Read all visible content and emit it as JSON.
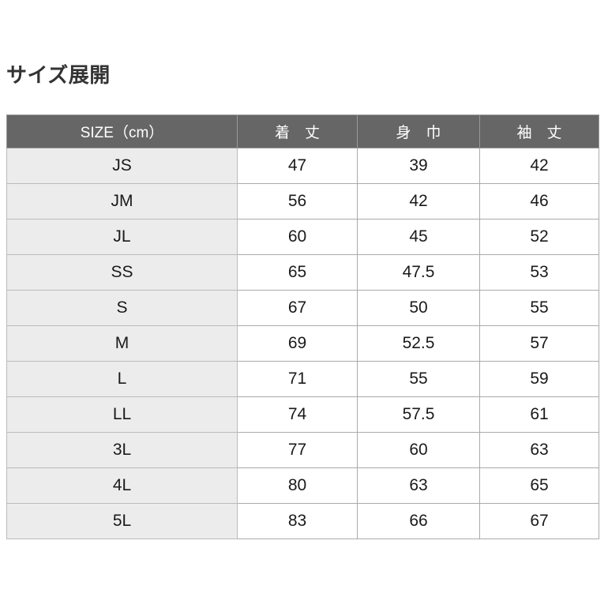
{
  "page": {
    "title": "サイズ展開"
  },
  "table": {
    "columns": [
      "SIZE（cm）",
      "着　丈",
      "身　巾",
      "袖　丈"
    ],
    "rows": [
      {
        "size": "JS",
        "values": [
          "47",
          "39",
          "42"
        ]
      },
      {
        "size": "JM",
        "values": [
          "56",
          "42",
          "46"
        ]
      },
      {
        "size": "JL",
        "values": [
          "60",
          "45",
          "52"
        ]
      },
      {
        "size": "SS",
        "values": [
          "65",
          "47.5",
          "53"
        ]
      },
      {
        "size": "S",
        "values": [
          "67",
          "50",
          "55"
        ]
      },
      {
        "size": "M",
        "values": [
          "69",
          "52.5",
          "57"
        ]
      },
      {
        "size": "L",
        "values": [
          "71",
          "55",
          "59"
        ]
      },
      {
        "size": "LL",
        "values": [
          "74",
          "57.5",
          "61"
        ]
      },
      {
        "size": "3L",
        "values": [
          "77",
          "60",
          "63"
        ]
      },
      {
        "size": "4L",
        "values": [
          "80",
          "63",
          "65"
        ]
      },
      {
        "size": "5L",
        "values": [
          "83",
          "66",
          "67"
        ]
      }
    ]
  },
  "colors": {
    "header_background": "#666666",
    "header_text": "#ffffff",
    "label_column_background": "#ececec",
    "cell_border": "#bbbbbb",
    "title_text": "#333333",
    "value_text": "#1a1a1a",
    "page_background": "#ffffff"
  }
}
